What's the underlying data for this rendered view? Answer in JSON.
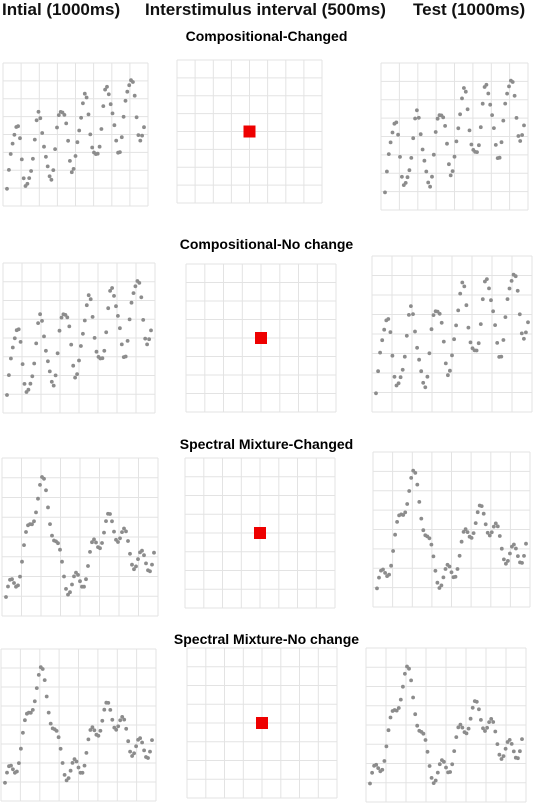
{
  "headers": {
    "initial": "Intial (1000ms)",
    "isi": "Interstimulus interval (500ms)",
    "test": "Test (1000ms)"
  },
  "colors": {
    "points": "#8c8c8c",
    "grid": "#e3e3e3",
    "fixation": "#ee0000"
  },
  "conditions": [
    {
      "title": "Compositional-Changed",
      "kernel": "compositional"
    },
    {
      "title": "Compositional-No change",
      "kernel": "compositional"
    },
    {
      "title": "Spectral Mixture-Changed",
      "kernel": "spectral"
    },
    {
      "title": "Spectral Mixture-No change",
      "kernel": "spectral"
    }
  ],
  "fixation_icon": "red-square"
}
